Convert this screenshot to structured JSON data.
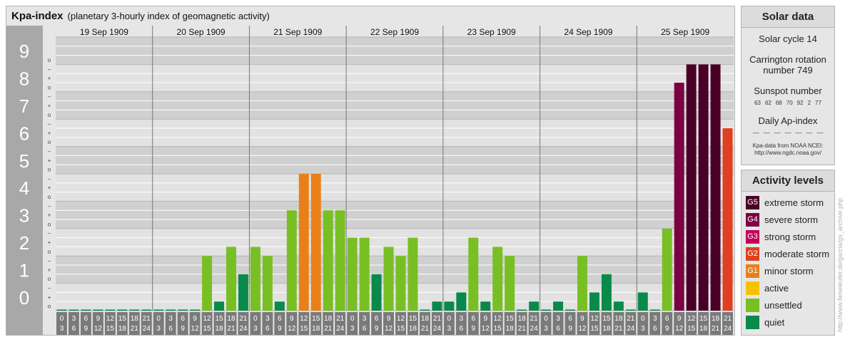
{
  "chart_title": "Kpa-index",
  "chart_subtitle": "(planetary 3-hourly index of geomagnetic activity)",
  "chart_data": {
    "type": "bar",
    "title": "Kpa-index",
    "subtitle": "(planetary 3-hourly index of geomagnetic activity)",
    "ylim": [
      0,
      9
    ],
    "y_ticks": [
      "0",
      "1",
      "2",
      "3",
      "4",
      "5",
      "6",
      "7",
      "8",
      "9"
    ],
    "y_minor_ticks": [
      "o",
      "+",
      "–"
    ],
    "days": [
      "19 Sep 1909",
      "20 Sep 1909",
      "21 Sep 1909",
      "22 Sep 1909",
      "23 Sep 1909",
      "24 Sep 1909",
      "25 Sep 1909"
    ],
    "interval_labels": [
      [
        "0",
        "3"
      ],
      [
        "3",
        "6"
      ],
      [
        "6",
        "9"
      ],
      [
        "9",
        "12"
      ],
      [
        "12",
        "15"
      ],
      [
        "15",
        "18"
      ],
      [
        "18",
        "21"
      ],
      [
        "21",
        "24"
      ]
    ],
    "values": [
      [
        0,
        0,
        0,
        0,
        0,
        0,
        0,
        0
      ],
      [
        0,
        0,
        0,
        0,
        2.0,
        0.333,
        2.333,
        1.333
      ],
      [
        2.333,
        2.0,
        0.333,
        3.667,
        5.0,
        5.0,
        3.667,
        3.667
      ],
      [
        2.667,
        2.667,
        1.333,
        2.333,
        2.0,
        2.667,
        0,
        0.333
      ],
      [
        0.333,
        0.667,
        2.667,
        0.333,
        2.333,
        2.0,
        0,
        0.333
      ],
      [
        0,
        0.333,
        0,
        2.0,
        0.667,
        1.333,
        0.333,
        0
      ],
      [
        0.667,
        0,
        3.0,
        8.333,
        9.0,
        9.0,
        9.0,
        6.667
      ]
    ],
    "grid": true,
    "legend": "right"
  },
  "solar": {
    "heading": "Solar data",
    "cycle": "Solar cycle 14",
    "carrington_line1": "Carrington rotation",
    "carrington_line2": "number 749",
    "sunspot_heading": "Sunspot number",
    "sunspots": [
      "63",
      "62",
      "68",
      "70",
      "92",
      "2",
      "77"
    ],
    "ap_heading": "Daily Ap-index",
    "ap_values": [
      "––",
      "––",
      "––",
      "––",
      "––",
      "––",
      "––"
    ],
    "source_line1": "Kpa-data from NOAA NCEI:",
    "source_line2": "http://www.ngdc.noaa.gov/"
  },
  "activity": {
    "heading": "Activity levels",
    "levels": [
      {
        "code": "G5",
        "label": "extreme storm",
        "color": "#4a0026"
      },
      {
        "code": "G4",
        "label": "severe storm",
        "color": "#7a0042"
      },
      {
        "code": "G3",
        "label": "strong storm",
        "color": "#c4005a"
      },
      {
        "code": "G2",
        "label": "moderate storm",
        "color": "#e04020"
      },
      {
        "code": "G1",
        "label": "minor storm",
        "color": "#e8801a"
      },
      {
        "code": "",
        "label": "active",
        "color": "#f6c200"
      },
      {
        "code": "",
        "label": "unsettled",
        "color": "#78bf24"
      },
      {
        "code": "",
        "label": "quiet",
        "color": "#0a8a4a"
      }
    ]
  },
  "watermark": "http://www.fieseleufer.de/garcia/gs_archive.php"
}
